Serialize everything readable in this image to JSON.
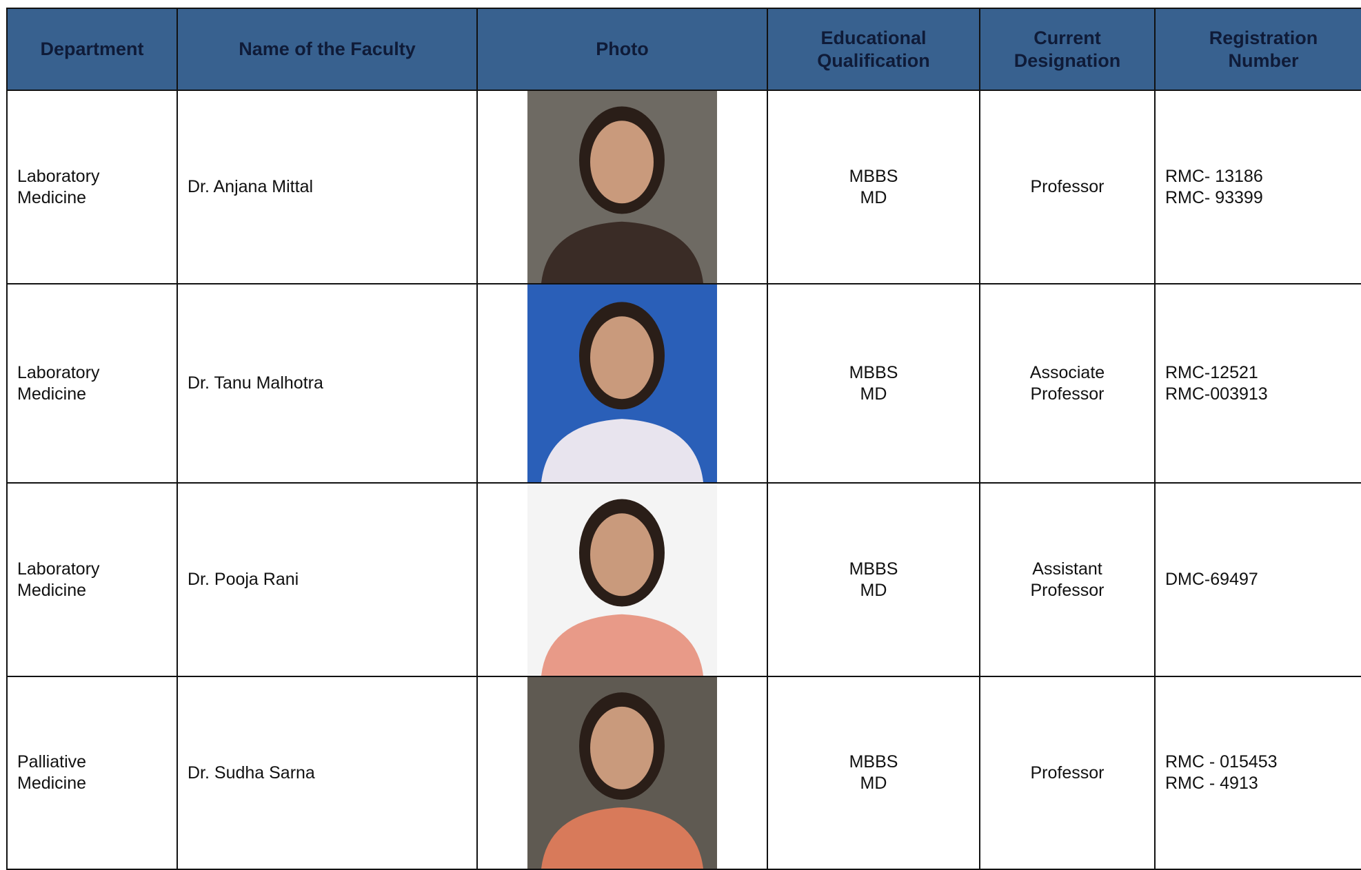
{
  "table": {
    "headers": [
      [
        "Department"
      ],
      [
        "Name of the Faculty"
      ],
      [
        "Photo"
      ],
      [
        "Educational",
        "Qualification"
      ],
      [
        "Current",
        "Designation"
      ],
      [
        "Registration",
        "Number"
      ]
    ],
    "rows": [
      {
        "department": [
          "Laboratory",
          "Medicine"
        ],
        "name": "Dr. Anjana Mittal",
        "qualification": [
          "MBBS",
          "MD"
        ],
        "designation": [
          "Professor"
        ],
        "registration": [
          "RMC- 13186",
          "RMC- 93399"
        ]
      },
      {
        "department": [
          "Laboratory",
          "Medicine"
        ],
        "name": "Dr. Tanu Malhotra",
        "qualification": [
          "MBBS",
          "MD"
        ],
        "designation": [
          "Associate",
          "Professor"
        ],
        "registration": [
          "RMC-12521",
          "RMC-003913"
        ]
      },
      {
        "department": [
          "Laboratory",
          "Medicine"
        ],
        "name": "Dr. Pooja Rani",
        "qualification": [
          "MBBS",
          "MD"
        ],
        "designation": [
          "Assistant",
          "Professor"
        ],
        "registration": [
          "DMC-69497"
        ]
      },
      {
        "department": [
          "Palliative",
          "Medicine"
        ],
        "name": "Dr. Sudha Sarna",
        "qualification": [
          "MBBS",
          "MD"
        ],
        "designation": [
          "Professor"
        ],
        "registration": [
          "RMC - 015453",
          "RMC - 4913"
        ]
      }
    ]
  }
}
